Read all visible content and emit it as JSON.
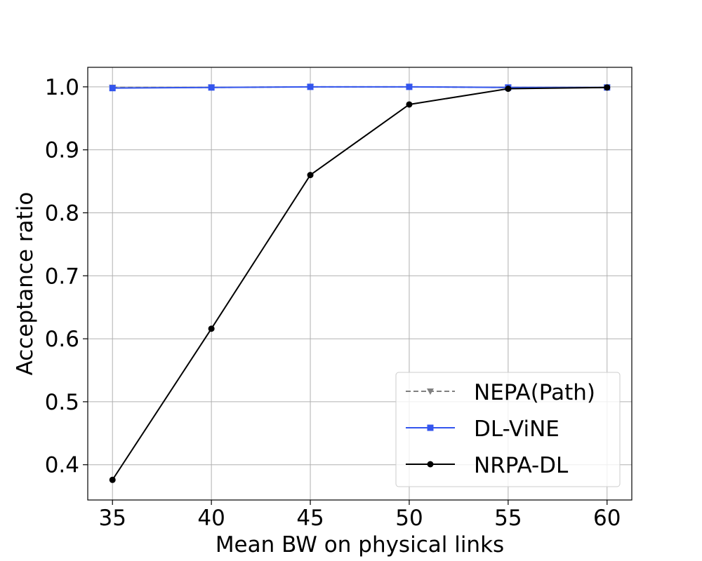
{
  "chart_data": {
    "type": "line",
    "title": "",
    "xlabel": "Mean BW on physical links",
    "ylabel": "Acceptance ratio",
    "x": [
      35,
      40,
      45,
      50,
      55,
      60
    ],
    "x_ticks": [
      "35",
      "40",
      "45",
      "50",
      "55",
      "60"
    ],
    "y_ticks": [
      "0.4",
      "0.5",
      "0.6",
      "0.7",
      "0.8",
      "0.9",
      "1.0"
    ],
    "xlim": [
      33.75,
      61.25
    ],
    "ylim": [
      0.344,
      1.031
    ],
    "grid": true,
    "legend_position": "lower-right",
    "series": [
      {
        "name": "NEPA(Path)",
        "values": [
          0.999,
          0.999,
          1.0,
          1.0,
          0.999,
          0.999
        ],
        "color": "#808080",
        "line_style": "dashed",
        "marker": "triangle-down"
      },
      {
        "name": "DL-ViNE",
        "values": [
          0.998,
          0.999,
          1.0,
          1.0,
          0.999,
          0.999
        ],
        "color": "#3355ee",
        "line_style": "solid",
        "marker": "square"
      },
      {
        "name": "NRPA-DL",
        "values": [
          0.376,
          0.616,
          0.86,
          0.972,
          0.997,
          0.999
        ],
        "color": "#000000",
        "line_style": "solid",
        "marker": "circle"
      }
    ]
  }
}
